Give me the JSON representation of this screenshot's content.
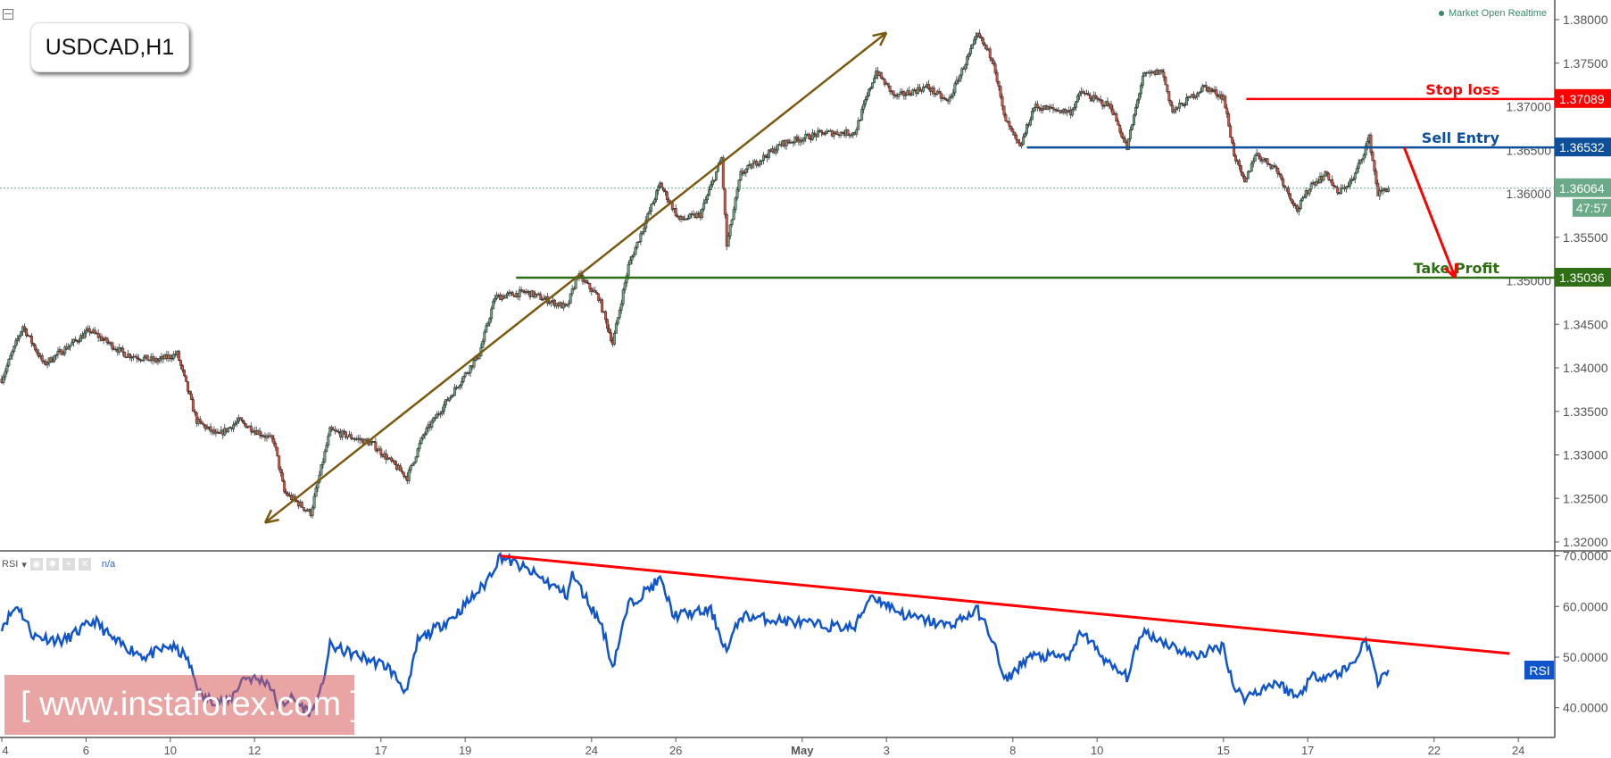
{
  "header": {
    "symbol": "USDCAD,H1",
    "market_status": "Market Open Realtime"
  },
  "rsi_panel": {
    "label": "RSI",
    "value": "n/a",
    "tag": "RSI"
  },
  "watermark": "[  www.instaforex.com ]",
  "colors": {
    "up": "#6ba583",
    "down": "#d75442",
    "rsi": "#1155cc",
    "stop_loss": "#ff0000",
    "sell_entry": "#0d4f9b",
    "take_profit": "#2e6e14",
    "current": "#6aaa88",
    "trend_arrow": "#7a5a10"
  },
  "chart_data": [
    {
      "type": "candlestick",
      "timeframe": "H1",
      "x_ticks": [
        {
          "date": "04-04",
          "label": "4"
        },
        {
          "date": "04-06",
          "label": "6"
        },
        {
          "date": "04-10",
          "label": "10"
        },
        {
          "date": "04-12",
          "label": "12"
        },
        {
          "date": "04-17",
          "label": "17"
        },
        {
          "date": "04-19",
          "label": "19"
        },
        {
          "date": "04-24",
          "label": "24"
        },
        {
          "date": "04-26",
          "label": "26"
        },
        {
          "date": "05-01",
          "label": "May"
        },
        {
          "date": "05-03",
          "label": "3"
        },
        {
          "date": "05-08",
          "label": "8"
        },
        {
          "date": "05-10",
          "label": "10"
        },
        {
          "date": "05-15",
          "label": "15"
        },
        {
          "date": "05-17",
          "label": "17"
        },
        {
          "date": "05-22",
          "label": "22"
        },
        {
          "date": "05-24",
          "label": "24"
        }
      ],
      "ylim": [
        1.32,
        1.38
      ],
      "y_ticks": [
        "1.32000",
        "1.32500",
        "1.33000",
        "1.33500",
        "1.34000",
        "1.34500",
        "1.35000",
        "1.35500",
        "1.36000",
        "1.36500",
        "1.37000",
        "1.37500",
        "1.38000"
      ],
      "price_path": [
        [
          "04-04 00",
          1.3387
        ],
        [
          "04-04 12",
          1.3448
        ],
        [
          "04-05 00",
          1.3404
        ],
        [
          "04-06 02",
          1.3443
        ],
        [
          "04-06 22",
          1.3416
        ],
        [
          "04-07 16",
          1.3408
        ],
        [
          "04-10 04",
          1.3416
        ],
        [
          "04-10 15",
          1.3339
        ],
        [
          "04-11 03",
          1.3322
        ],
        [
          "04-11 15",
          1.3339
        ],
        [
          "04-12 11",
          1.3316
        ],
        [
          "04-12 17",
          1.3257
        ],
        [
          "04-13 08",
          1.3233
        ],
        [
          "04-13 19",
          1.3328
        ],
        [
          "04-14 19",
          1.3313
        ],
        [
          "04-17 15",
          1.3274
        ],
        [
          "04-18 00",
          1.3322
        ],
        [
          "04-18 18",
          1.3375
        ],
        [
          "04-19 08",
          1.3416
        ],
        [
          "04-19 17",
          1.3481
        ],
        [
          "04-20 11",
          1.3487
        ],
        [
          "04-21 10",
          1.3469
        ],
        [
          "04-21 16",
          1.3507
        ],
        [
          "04-24 04",
          1.3481
        ],
        [
          "04-24 12",
          1.3428
        ],
        [
          "04-24 21",
          1.3517
        ],
        [
          "04-25 15",
          1.3611
        ],
        [
          "04-26 02",
          1.357
        ],
        [
          "04-26 14",
          1.3576
        ],
        [
          "04-27 02",
          1.3641
        ],
        [
          "04-27 05",
          1.354
        ],
        [
          "04-27 13",
          1.3623
        ],
        [
          "04-28 13",
          1.3658
        ],
        [
          "05-01 12",
          1.367
        ],
        [
          "05-02 06",
          1.367
        ],
        [
          "05-02 18",
          1.3741
        ],
        [
          "05-03 05",
          1.3711
        ],
        [
          "05-03 23",
          1.3723
        ],
        [
          "05-04 11",
          1.3705
        ],
        [
          "05-05 04",
          1.3782
        ],
        [
          "05-05 13",
          1.3753
        ],
        [
          "05-05 19",
          1.3688
        ],
        [
          "05-08 04",
          1.3652
        ],
        [
          "05-08 12",
          1.37
        ],
        [
          "05-09 09",
          1.3694
        ],
        [
          "05-09 15",
          1.3717
        ],
        [
          "05-09 20",
          1.3711
        ],
        [
          "05-10 08",
          1.37
        ],
        [
          "05-10 17",
          1.3652
        ],
        [
          "05-11 02",
          1.3735
        ],
        [
          "05-11 13",
          1.3741
        ],
        [
          "05-11 19",
          1.3694
        ],
        [
          "05-12 13",
          1.3723
        ],
        [
          "05-15 00",
          1.3711
        ],
        [
          "05-15 06",
          1.3646
        ],
        [
          "05-15 12",
          1.3611
        ],
        [
          "05-15 18",
          1.3646
        ],
        [
          "05-16 06",
          1.3629
        ],
        [
          "05-16 18",
          1.3581
        ],
        [
          "05-17 02",
          1.3611
        ],
        [
          "05-17 11",
          1.3623
        ],
        [
          "05-17 17",
          1.36
        ],
        [
          "05-18 02",
          1.3617
        ],
        [
          "05-18 11",
          1.3664
        ],
        [
          "05-18 16",
          1.36
        ],
        [
          "05-18 22",
          1.3607
        ]
      ],
      "current_price": "1.36064",
      "bar_countdown": "47:57",
      "levels": [
        {
          "name": "Stop loss",
          "price": 1.37089,
          "price_label": "1.37089",
          "from": "05-15 13",
          "color": "#ff0000"
        },
        {
          "name": "Sell Entry",
          "price": 1.36532,
          "price_label": "1.36532",
          "from": "05-08 08",
          "color": "#0d4f9b"
        },
        {
          "name": "Take Profit",
          "price": 1.35036,
          "price_label": "1.35036",
          "from": "04-20 05",
          "color": "#2e6e14"
        }
      ],
      "trend_arrow": {
        "from": [
          "04-12 06",
          1.3222
        ],
        "to": [
          "05-03 00",
          1.3785
        ]
      },
      "target_arrow": {
        "from": [
          "05-19 07",
          1.3653
        ],
        "to": [
          "05-22 12",
          1.35036
        ]
      }
    },
    {
      "type": "line",
      "name": "RSI",
      "ylim": [
        35,
        71
      ],
      "y_ticks": [
        "40.0000",
        "50.0000",
        "60.0000",
        "70.0000"
      ],
      "points": [
        [
          "04-04 00",
          56.2
        ],
        [
          "04-04 09",
          60.3
        ],
        [
          "04-04 18",
          54.2
        ],
        [
          "04-05 11",
          53.2
        ],
        [
          "04-06 05",
          57.2
        ],
        [
          "04-06 16",
          53.2
        ],
        [
          "04-07 10",
          50.1
        ],
        [
          "04-10 00",
          52.2
        ],
        [
          "04-10 09",
          50.1
        ],
        [
          "04-10 18",
          42.0
        ],
        [
          "04-11 09",
          41.0
        ],
        [
          "04-11 18",
          46.1
        ],
        [
          "04-12 08",
          45.1
        ],
        [
          "04-12 14",
          40.0
        ],
        [
          "04-12 20",
          42.0
        ],
        [
          "04-13 08",
          39.0
        ],
        [
          "04-13 13",
          42.0
        ],
        [
          "04-13 19",
          52.2
        ],
        [
          "04-14 13",
          50.0
        ],
        [
          "04-17 04",
          48.1
        ],
        [
          "04-17 15",
          43.0
        ],
        [
          "04-17 21",
          53.2
        ],
        [
          "04-18 18",
          58.2
        ],
        [
          "04-19 11",
          64.3
        ],
        [
          "04-19 20",
          70.0
        ],
        [
          "04-20 16",
          66.3
        ],
        [
          "04-21 10",
          62.3
        ],
        [
          "04-21 13",
          66.3
        ],
        [
          "04-24 06",
          56.2
        ],
        [
          "04-24 12",
          48.1
        ],
        [
          "04-24 21",
          60.3
        ],
        [
          "04-25 15",
          65.3
        ],
        [
          "04-25 23",
          58.2
        ],
        [
          "04-26 20",
          59.2
        ],
        [
          "04-27 05",
          51.1
        ],
        [
          "04-27 13",
          58.2
        ],
        [
          "04-28 13",
          57.2
        ],
        [
          "05-01 12",
          56.2
        ],
        [
          "05-02 06",
          55.8
        ],
        [
          "05-02 15",
          62.3
        ],
        [
          "05-03 11",
          58.2
        ],
        [
          "05-04 11",
          56.2
        ],
        [
          "05-05 04",
          59.2
        ],
        [
          "05-05 13",
          53.2
        ],
        [
          "05-05 19",
          45.1
        ],
        [
          "05-08 09",
          50.1
        ],
        [
          "05-09 09",
          50.1
        ],
        [
          "05-09 15",
          55.2
        ],
        [
          "05-10 08",
          48.1
        ],
        [
          "05-10 17",
          46.1
        ],
        [
          "05-11 02",
          55.2
        ],
        [
          "05-11 13",
          53.2
        ],
        [
          "05-12 07",
          50.1
        ],
        [
          "05-15 00",
          52.2
        ],
        [
          "05-15 06",
          44.0
        ],
        [
          "05-15 12",
          42.0
        ],
        [
          "05-16 06",
          45.1
        ],
        [
          "05-16 18",
          42.0
        ],
        [
          "05-17 02",
          46.1
        ],
        [
          "05-17 17",
          46.7
        ],
        [
          "05-18 02",
          48.7
        ],
        [
          "05-18 09",
          53.8
        ],
        [
          "05-18 16",
          45.1
        ],
        [
          "05-18 22",
          47.7
        ]
      ],
      "trendline": {
        "from": [
          "04-19 20",
          70.0
        ],
        "to": [
          "05-23 19",
          50.7
        ],
        "color": "#ff0000"
      }
    }
  ]
}
